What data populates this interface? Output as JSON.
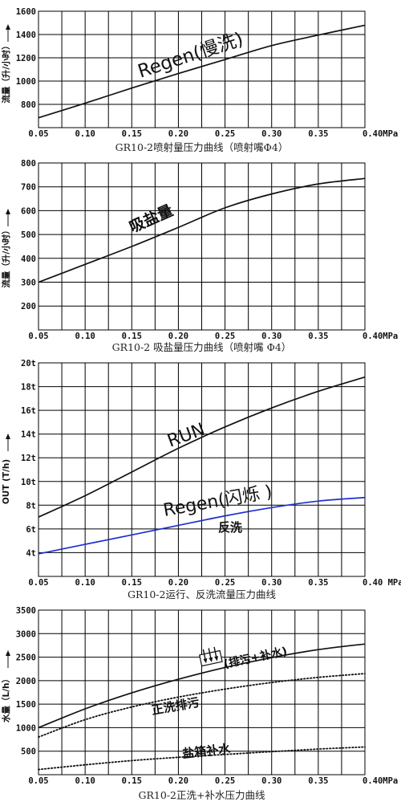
{
  "chart_data": [
    {
      "type": "line",
      "title": "GR10-2喷射量压力曲线（喷射嘴Φ4）",
      "ylabel": "流量（升/小时）",
      "xlim": [
        0.05,
        0.4
      ],
      "ylim": [
        600,
        1600
      ],
      "xticks": [
        "0.05",
        "0.10",
        "0.15",
        "0.20",
        "0.25",
        "0.30",
        "0.35",
        "0.40MPa"
      ],
      "yticks": [
        "1600",
        "1400",
        "1200",
        "1000",
        "800"
      ],
      "series": [
        {
          "name": "Regen(慢洗)",
          "color": "#111111",
          "style": "solid",
          "x": [
            0.05,
            0.1,
            0.15,
            0.2,
            0.25,
            0.3,
            0.35,
            0.4
          ],
          "y": [
            685,
            810,
            940,
            1065,
            1185,
            1305,
            1395,
            1480
          ]
        }
      ],
      "annotations": [
        {
          "text": "Regen(慢洗)"
        }
      ]
    },
    {
      "type": "line",
      "title": "GR10-2 吸盐量压力曲线（喷射嘴 Φ4）",
      "ylabel": "流量（升/小时）",
      "xlim": [
        0.05,
        0.4
      ],
      "ylim": [
        100,
        800
      ],
      "xticks": [
        "0.05",
        "0.10",
        "0.15",
        "0.20",
        "0.25",
        "0.30",
        "0.35",
        "0.40MPa"
      ],
      "yticks": [
        "800",
        "700",
        "600",
        "500",
        "400",
        "300",
        "200"
      ],
      "series": [
        {
          "name": "吸盐量",
          "color": "#111111",
          "style": "solid",
          "x": [
            0.05,
            0.1,
            0.15,
            0.2,
            0.25,
            0.3,
            0.35,
            0.4
          ],
          "y": [
            300,
            375,
            450,
            530,
            612,
            670,
            712,
            735
          ]
        }
      ],
      "annotations": [
        {
          "text": "吸盐量"
        }
      ]
    },
    {
      "type": "line",
      "title": "GR10-2运行、反洗流量压力曲线",
      "ylabel": "OUT (T/h)",
      "xlim": [
        0.05,
        0.4
      ],
      "ylim": [
        2,
        20
      ],
      "xticks": [
        "0.05",
        "0.10",
        "0.15",
        "0.20",
        "0.25",
        "0.30",
        "0.35",
        "0.40 MPa"
      ],
      "yticks": [
        "20t",
        "18t",
        "16t",
        "14t",
        "12t",
        "10t",
        "8t",
        "6t",
        "4t"
      ],
      "series": [
        {
          "name": "RUN",
          "color": "#111111",
          "style": "solid",
          "x": [
            0.05,
            0.1,
            0.15,
            0.2,
            0.25,
            0.3,
            0.35,
            0.4
          ],
          "y": [
            7.0,
            8.8,
            10.8,
            12.8,
            14.6,
            16.2,
            17.6,
            18.8
          ]
        },
        {
          "name": "反洗",
          "color": "#1f2fd0",
          "style": "solid",
          "x": [
            0.05,
            0.1,
            0.15,
            0.2,
            0.25,
            0.3,
            0.35,
            0.4
          ],
          "y": [
            3.9,
            4.7,
            5.5,
            6.3,
            7.1,
            7.8,
            8.35,
            8.65
          ]
        }
      ],
      "annotations": [
        {
          "text": "RUN"
        },
        {
          "text": "Regen(闪烁 )"
        },
        {
          "text": "反洗",
          "color": "#e01818"
        }
      ]
    },
    {
      "type": "line",
      "title": "GR10-2正洗+补水压力曲线",
      "ylabel": "水量（L/h）",
      "xlim": [
        0.05,
        0.4
      ],
      "ylim": [
        0,
        3500
      ],
      "xticks": [
        "0.05",
        "0.10",
        "0.15",
        "0.20",
        "0.25",
        "0.30",
        "0.35",
        "0.40MPa"
      ],
      "yticks": [
        "3500",
        "3000",
        "2500",
        "2000",
        "1500",
        "1000",
        "500"
      ],
      "series": [
        {
          "name": "(排污+补水)",
          "color": "#111111",
          "style": "solid",
          "x": [
            0.05,
            0.1,
            0.15,
            0.2,
            0.25,
            0.3,
            0.35,
            0.4
          ],
          "y": [
            1000,
            1400,
            1740,
            2030,
            2280,
            2490,
            2660,
            2780
          ]
        },
        {
          "name": "正洗排污",
          "color": "#111111",
          "style": "dotted",
          "x": [
            0.05,
            0.1,
            0.15,
            0.2,
            0.25,
            0.3,
            0.35,
            0.4
          ],
          "y": [
            800,
            1170,
            1440,
            1650,
            1820,
            1960,
            2070,
            2150
          ]
        },
        {
          "name": "盐箱补水",
          "color": "#111111",
          "style": "dotted",
          "x": [
            0.05,
            0.1,
            0.15,
            0.2,
            0.25,
            0.3,
            0.35,
            0.4
          ],
          "y": [
            110,
            210,
            300,
            370,
            430,
            490,
            545,
            590
          ]
        }
      ],
      "annotations": [
        {
          "text": "(排污+补水)"
        },
        {
          "text": "正洗排污"
        },
        {
          "text": "盐箱补水"
        }
      ]
    }
  ]
}
